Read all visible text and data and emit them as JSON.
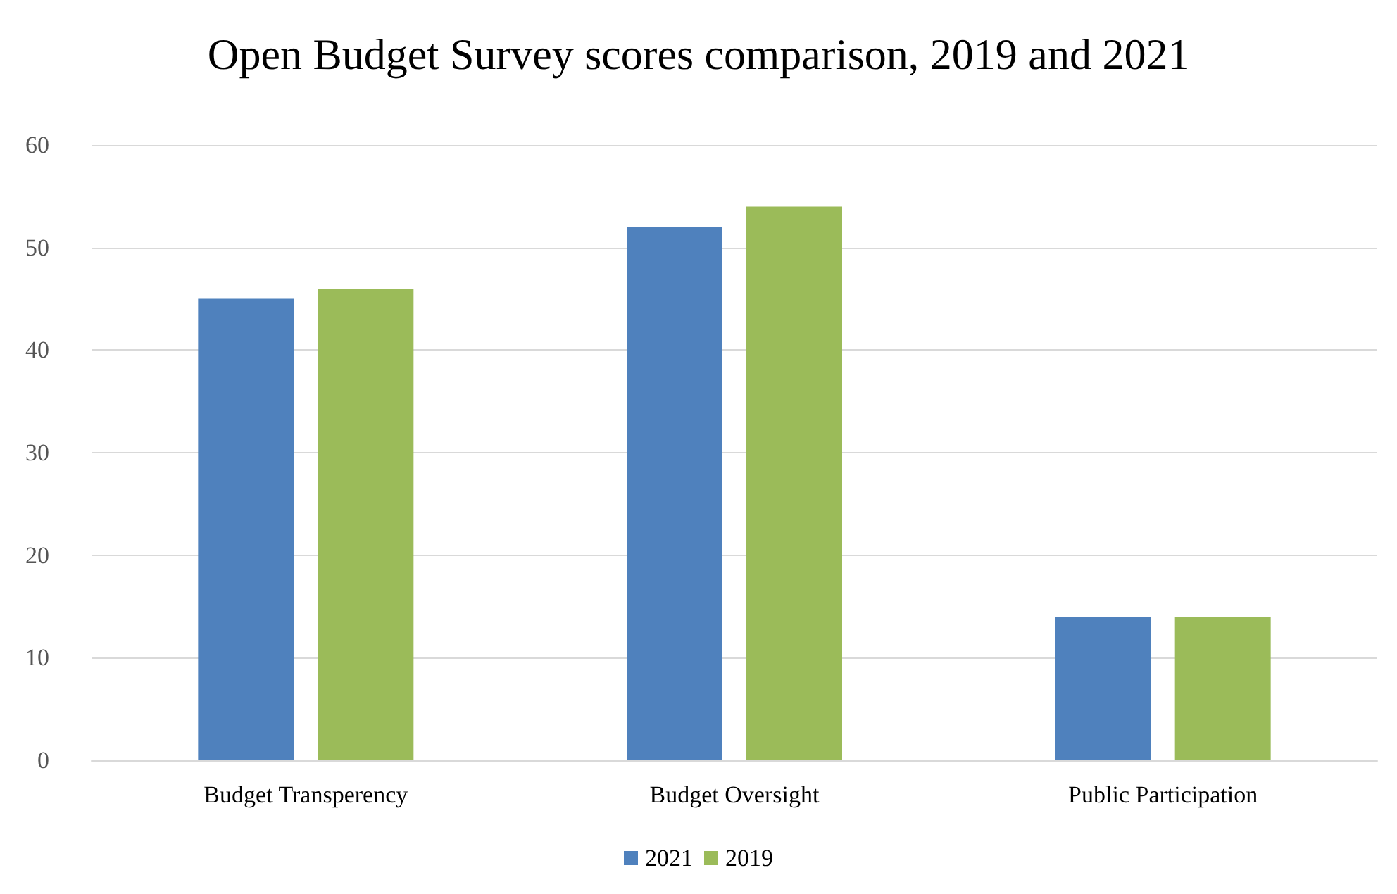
{
  "chart_data": {
    "type": "bar",
    "title": "Open Budget Survey scores comparison, 2019 and 2021",
    "categories": [
      "Budget Transperency",
      "Budget Oversight",
      "Public Participation"
    ],
    "series": [
      {
        "name": "2021",
        "color": "#4f81bd",
        "values": [
          45,
          52,
          14
        ]
      },
      {
        "name": "2019",
        "color": "#9bbb59",
        "values": [
          46,
          54,
          14
        ]
      }
    ],
    "ylim": [
      0,
      60
    ],
    "yticks": [
      0,
      10,
      20,
      30,
      40,
      50,
      60
    ],
    "grid": "y",
    "legend": "bottom"
  }
}
